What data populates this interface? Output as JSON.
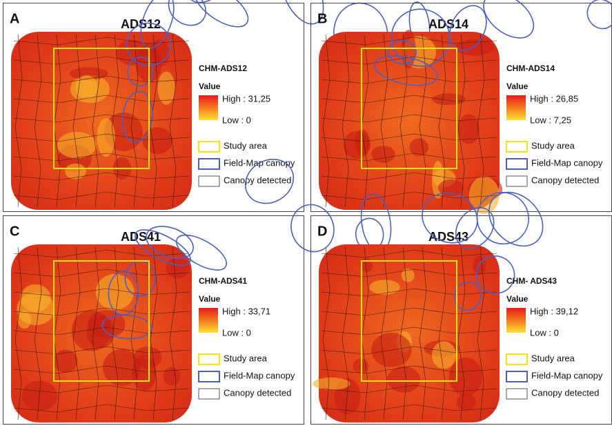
{
  "panels": [
    {
      "letter": "A",
      "title": "ADS12",
      "legend_title": "CHM-ADS12",
      "value_label": "Value",
      "high": "High : 31,25",
      "low": "Low : 0",
      "items": [
        "Study area",
        "Field-Map canopy",
        "Canopy detected"
      ]
    },
    {
      "letter": "B",
      "title": "ADS14",
      "legend_title": "CHM-ADS14",
      "value_label": "Value",
      "high": "High : 26,85",
      "low": "Low : 7,25",
      "items": [
        "Study area",
        "Field-Map canopy",
        "Canopy detected"
      ]
    },
    {
      "letter": "C",
      "title": "ADS41",
      "legend_title": "CHM-ADS41",
      "value_label": "Value",
      "high": "High : 33,71",
      "low": "Low : 0",
      "items": [
        "Study area",
        "Field-Map canopy",
        "Canopy detected"
      ]
    },
    {
      "letter": "D",
      "title": "ADS43",
      "legend_title": "CHM- ADS43",
      "value_label": "Value",
      "high": "High : 39,12",
      "low": "Low : 0",
      "items": [
        "Study area",
        "Field-Map canopy",
        "Canopy detected"
      ]
    }
  ]
}
